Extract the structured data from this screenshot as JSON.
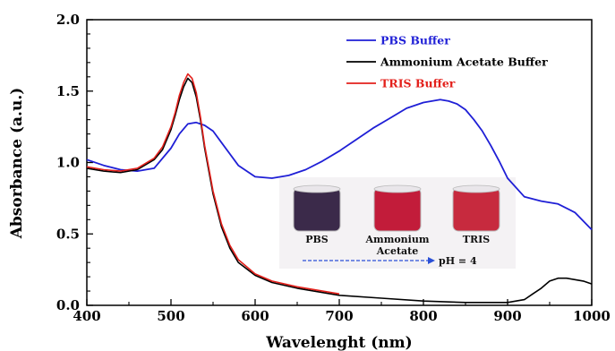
{
  "chart_data": {
    "type": "line",
    "xlabel": "Wavelenght (nm)",
    "ylabel": "Absorbance (a.u.)",
    "xlim": [
      400,
      1000
    ],
    "ylim": [
      0.0,
      2.0
    ],
    "xticks": [
      "400",
      "500",
      "600",
      "700",
      "800",
      "900",
      "1000"
    ],
    "yticks": [
      "0.0",
      "0.5",
      "1.0",
      "1.5",
      "2.0"
    ],
    "grid": false,
    "legend_position": "top-right",
    "series": [
      {
        "name": "PBS Buffer",
        "color": "#1f1fd6",
        "x": [
          400,
          420,
          440,
          460,
          480,
          500,
          510,
          520,
          530,
          540,
          550,
          560,
          580,
          600,
          620,
          640,
          660,
          680,
          700,
          720,
          740,
          760,
          780,
          800,
          810,
          820,
          830,
          840,
          850,
          860,
          870,
          880,
          890,
          900,
          920,
          940,
          960,
          980,
          1000
        ],
        "y": [
          1.02,
          0.98,
          0.95,
          0.94,
          0.96,
          1.1,
          1.2,
          1.27,
          1.28,
          1.26,
          1.22,
          1.14,
          0.98,
          0.9,
          0.89,
          0.91,
          0.95,
          1.01,
          1.08,
          1.16,
          1.24,
          1.31,
          1.38,
          1.42,
          1.43,
          1.44,
          1.43,
          1.41,
          1.37,
          1.3,
          1.22,
          1.12,
          1.01,
          0.89,
          0.76,
          0.73,
          0.71,
          0.65,
          0.53
        ]
      },
      {
        "name": "Ammonium Acetate Buffer",
        "color": "#000000",
        "x": [
          400,
          420,
          440,
          460,
          480,
          490,
          500,
          505,
          510,
          515,
          520,
          525,
          530,
          535,
          540,
          550,
          560,
          570,
          580,
          600,
          620,
          650,
          700,
          750,
          800,
          850,
          900,
          920,
          930,
          940,
          950,
          960,
          970,
          980,
          990,
          1000
        ],
        "y": [
          0.96,
          0.94,
          0.93,
          0.95,
          1.02,
          1.09,
          1.23,
          1.33,
          1.44,
          1.53,
          1.59,
          1.56,
          1.46,
          1.3,
          1.1,
          0.78,
          0.55,
          0.4,
          0.3,
          0.21,
          0.16,
          0.12,
          0.07,
          0.05,
          0.03,
          0.02,
          0.02,
          0.04,
          0.08,
          0.12,
          0.17,
          0.19,
          0.19,
          0.18,
          0.17,
          0.15
        ]
      },
      {
        "name": "TRIS Buffer",
        "color": "#e3201b",
        "x": [
          400,
          420,
          440,
          460,
          480,
          490,
          500,
          505,
          510,
          515,
          520,
          525,
          530,
          535,
          540,
          550,
          560,
          570,
          580,
          600,
          620,
          650,
          700
        ],
        "y": [
          0.97,
          0.95,
          0.94,
          0.96,
          1.03,
          1.11,
          1.25,
          1.35,
          1.47,
          1.56,
          1.62,
          1.59,
          1.49,
          1.32,
          1.12,
          0.8,
          0.57,
          0.42,
          0.32,
          0.22,
          0.17,
          0.13,
          0.08
        ]
      }
    ],
    "inset": {
      "vials": [
        {
          "label": "PBS",
          "color": "#3b2a4a"
        },
        {
          "label": "Ammonium Acetate",
          "color": "#c21c3a"
        },
        {
          "label": "TRIS",
          "color": "#c72a3e"
        }
      ],
      "arrow_label": "pH = 4",
      "arrow_color": "#2a4fd6"
    }
  }
}
